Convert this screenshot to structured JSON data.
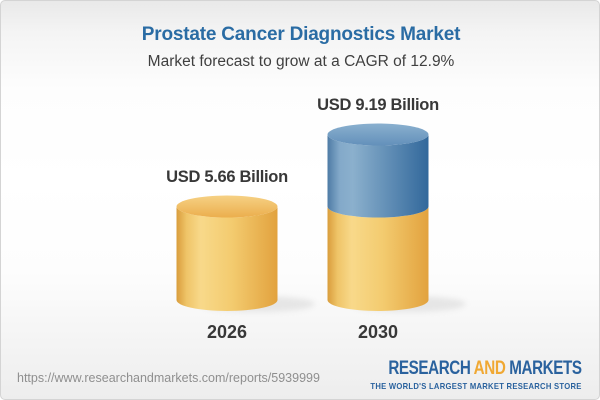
{
  "chart_data": {
    "type": "bar",
    "style": "3d-cylinder",
    "title": "Prostate Cancer Diagnostics Market",
    "subtitle": "Market forecast to grow at a CAGR of 12.9%",
    "categories": [
      "2026",
      "2030"
    ],
    "values": [
      5.66,
      9.19
    ],
    "data_labels": [
      "USD 5.66 Billion",
      "USD 9.19 Billion"
    ],
    "unit": "USD Billion",
    "cagr_percent": 12.9,
    "ylim": [
      0,
      9.19
    ],
    "grid": false,
    "legend": false,
    "series": [
      {
        "name": "base-gold-segment",
        "values": [
          5.66,
          5.66
        ],
        "color": "#F0C167"
      },
      {
        "name": "growth-blue-segment",
        "values": [
          0,
          3.53
        ],
        "color": "#5E8CB6"
      }
    ]
  },
  "colors": {
    "title_blue": "#2A6CA4",
    "label_dark": "#383838",
    "bar_gold": "#F0C167",
    "bar_blue": "#5E8CB6",
    "url_gray": "#8F8F8F",
    "logo_blue": "#2A629E",
    "logo_gold": "#F0A833"
  },
  "footer": {
    "url": "https://www.researchandmarkets.com/reports/5939999",
    "logo": {
      "word1": "RESEARCH",
      "word2": "AND",
      "word3": "MARKETS",
      "tagline": "THE WORLD'S LARGEST MARKET RESEARCH STORE"
    }
  }
}
